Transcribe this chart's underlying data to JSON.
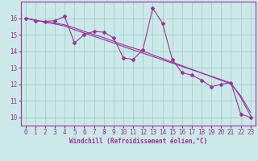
{
  "xlabel": "Windchill (Refroidissement éolien,°C)",
  "background_color": "#cce8e8",
  "grid_color": "#99cccc",
  "line_color": "#993399",
  "x_data": [
    0,
    1,
    2,
    3,
    4,
    5,
    6,
    7,
    8,
    9,
    10,
    11,
    12,
    13,
    14,
    15,
    16,
    17,
    18,
    19,
    20,
    21,
    22,
    23
  ],
  "y_data1": [
    16.0,
    15.85,
    15.8,
    15.85,
    16.1,
    14.5,
    15.0,
    15.2,
    15.15,
    14.8,
    13.6,
    13.5,
    14.1,
    16.6,
    15.7,
    13.5,
    12.7,
    12.55,
    12.25,
    11.85,
    12.0,
    12.1,
    10.2,
    10.0
  ],
  "y_data2": [
    16.0,
    15.88,
    15.76,
    15.7,
    15.6,
    15.4,
    15.2,
    15.0,
    14.82,
    14.6,
    14.38,
    14.2,
    14.0,
    13.78,
    13.56,
    13.34,
    13.12,
    12.9,
    12.68,
    12.46,
    12.24,
    12.02,
    11.3,
    10.3
  ],
  "y_data3": [
    16.0,
    15.88,
    15.76,
    15.65,
    15.52,
    15.3,
    15.1,
    14.9,
    14.7,
    14.5,
    14.28,
    14.08,
    13.88,
    13.68,
    13.48,
    13.28,
    13.08,
    12.88,
    12.68,
    12.48,
    12.28,
    12.08,
    11.2,
    10.1
  ],
  "ylim": [
    9.5,
    17.0
  ],
  "xlim": [
    -0.5,
    23.5
  ],
  "yticks": [
    10,
    11,
    12,
    13,
    14,
    15,
    16
  ],
  "xticks": [
    0,
    1,
    2,
    3,
    4,
    5,
    6,
    7,
    8,
    9,
    10,
    11,
    12,
    13,
    14,
    15,
    16,
    17,
    18,
    19,
    20,
    21,
    22,
    23
  ],
  "tick_fontsize": 5.5,
  "xlabel_fontsize": 5.5
}
